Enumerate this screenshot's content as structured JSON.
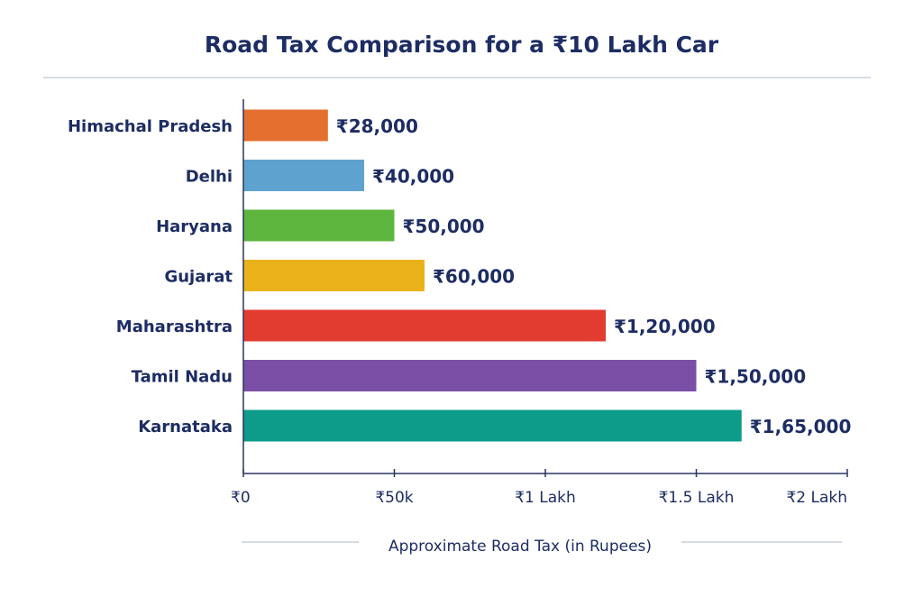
{
  "chart_data": {
    "type": "bar",
    "orientation": "horizontal",
    "title": "Road Tax Comparison for a ₹10 Lakh Car",
    "xlabel": "Approximate Road Tax (in Rupees)",
    "ylabel": "",
    "categories": [
      "Himachal Pradesh",
      "Delhi",
      "Haryana",
      "Gujarat",
      "Maharashtra",
      "Tamil Nadu",
      "Karnataka"
    ],
    "values": [
      28000,
      40000,
      50000,
      60000,
      120000,
      150000,
      165000
    ],
    "value_labels": [
      "₹28,000",
      "₹40,000",
      "₹50,000",
      "₹60,000",
      "₹1,20,000",
      "₹1,50,000",
      "₹1,65,000"
    ],
    "colors": [
      "#e46f2e",
      "#5ea3d0",
      "#5db53d",
      "#eab21a",
      "#e23c31",
      "#7b4fa6",
      "#0d9b8a"
    ],
    "xlim": [
      0,
      200000
    ],
    "xticks": [
      0,
      50000,
      100000,
      150000,
      200000
    ],
    "xtick_labels": [
      "₹0",
      "₹50k",
      "₹1 Lakh",
      "₹1.5 Lakh",
      "₹2 Lakh"
    ],
    "grid": false,
    "legend": "none"
  }
}
